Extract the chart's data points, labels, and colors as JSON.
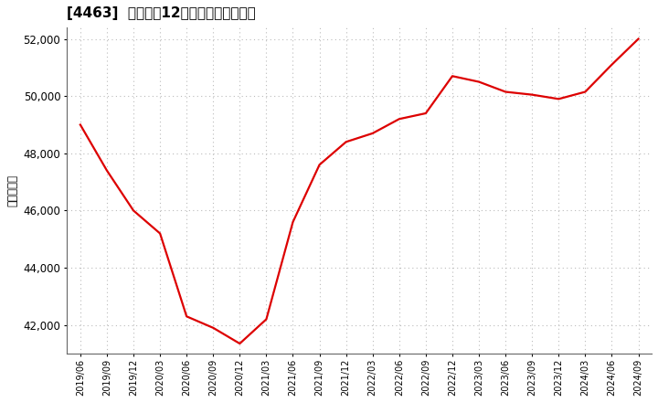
{
  "title": "[4463]  売上高の12か月移動合計の推移",
  "ylabel": "（百万円）",
  "line_color": "#dd0000",
  "line_width": 1.6,
  "background_color": "#ffffff",
  "grid_color": "#bbbbbb",
  "ylim": [
    41000,
    52400
  ],
  "yticks": [
    42000,
    44000,
    46000,
    48000,
    50000,
    52000
  ],
  "dates": [
    "2019/06",
    "2019/09",
    "2019/12",
    "2020/03",
    "2020/06",
    "2020/09",
    "2020/12",
    "2021/03",
    "2021/06",
    "2021/09",
    "2021/12",
    "2022/03",
    "2022/06",
    "2022/09",
    "2022/12",
    "2023/03",
    "2023/06",
    "2023/09",
    "2023/12",
    "2024/03",
    "2024/06",
    "2024/09"
  ],
  "values": [
    49000,
    47400,
    46000,
    45200,
    42300,
    41900,
    41350,
    42200,
    45600,
    47600,
    48400,
    48700,
    49200,
    49400,
    50700,
    50500,
    50150,
    50050,
    49900,
    50150,
    51100,
    52000
  ]
}
